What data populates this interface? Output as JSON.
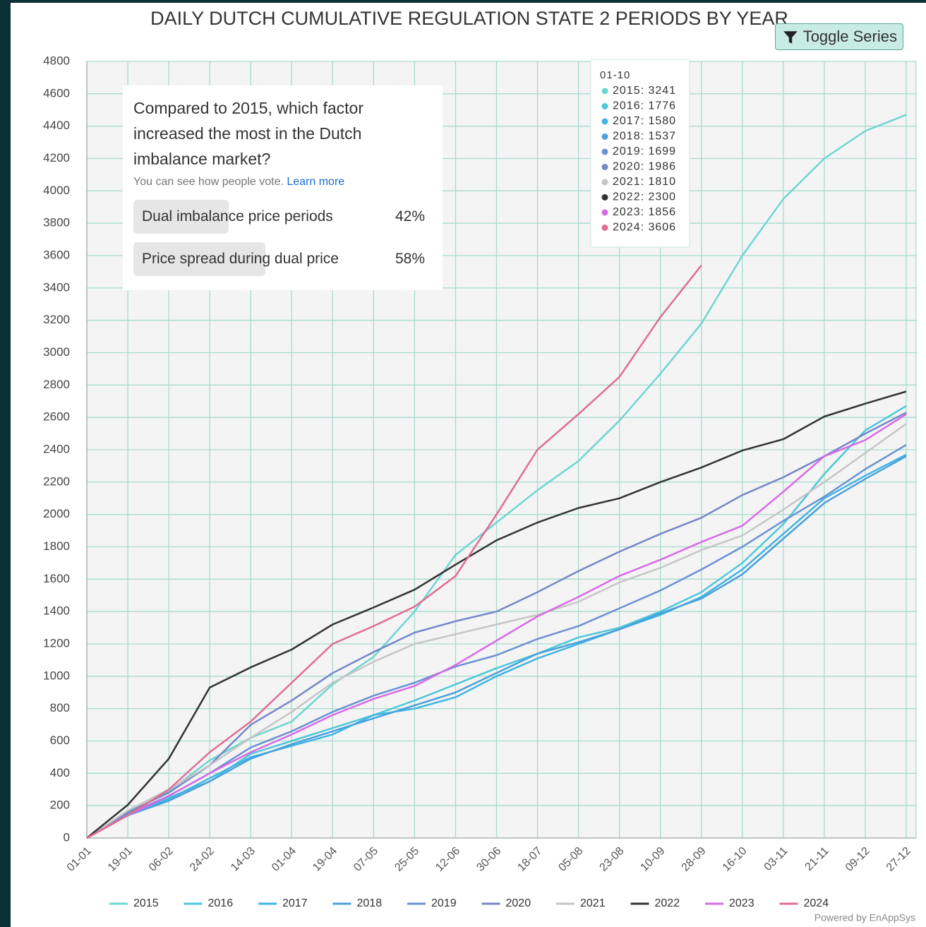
{
  "chart_data": {
    "type": "line",
    "title": "DAILY DUTCH CUMULATIVE REGULATION STATE 2 PERIODS BY YEAR",
    "categories": [
      "01-01",
      "19-01",
      "06-02",
      "24-02",
      "14-03",
      "01-04",
      "19-04",
      "07-05",
      "25-05",
      "12-06",
      "30-06",
      "18-07",
      "05-08",
      "23-08",
      "10-09",
      "28-09",
      "16-10",
      "03-11",
      "21-11",
      "09-12",
      "27-12"
    ],
    "ylim": [
      0,
      4800
    ],
    "yticks": [
      0,
      200,
      400,
      600,
      800,
      1000,
      1200,
      1400,
      1600,
      1800,
      2000,
      2200,
      2400,
      2600,
      2800,
      3000,
      3200,
      3400,
      3600,
      3800,
      4000,
      4200,
      4400,
      4600,
      4800
    ],
    "grid": true,
    "legend": "bottom",
    "series": [
      {
        "name": "2015",
        "color": "#6fd6cf",
        "values": [
          0,
          150,
          290,
          480,
          620,
          720,
          950,
          1120,
          1400,
          1750,
          1950,
          2150,
          2330,
          2580,
          2870,
          3180,
          3600,
          3950,
          4200,
          4370,
          4470
        ]
      },
      {
        "name": "2016",
        "color": "#4ec8d8",
        "values": [
          0,
          150,
          250,
          350,
          520,
          600,
          680,
          760,
          850,
          950,
          1050,
          1140,
          1240,
          1300,
          1400,
          1520,
          1700,
          1940,
          2250,
          2520,
          2670
        ]
      },
      {
        "name": "2017",
        "color": "#3fb4e4",
        "values": [
          0,
          150,
          240,
          370,
          500,
          570,
          640,
          760,
          800,
          870,
          1000,
          1110,
          1200,
          1290,
          1380,
          1490,
          1660,
          1880,
          2100,
          2240,
          2370
        ]
      },
      {
        "name": "2018",
        "color": "#4ba0dc",
        "values": [
          0,
          140,
          230,
          350,
          490,
          580,
          660,
          740,
          820,
          900,
          1020,
          1140,
          1210,
          1290,
          1390,
          1480,
          1630,
          1850,
          2070,
          2220,
          2360
        ]
      },
      {
        "name": "2019",
        "color": "#6b91d2",
        "values": [
          0,
          150,
          260,
          400,
          560,
          660,
          780,
          880,
          960,
          1060,
          1130,
          1230,
          1310,
          1420,
          1530,
          1660,
          1800,
          1960,
          2110,
          2280,
          2430
        ]
      },
      {
        "name": "2020",
        "color": "#7487c9",
        "values": [
          0,
          160,
          280,
          450,
          700,
          850,
          1020,
          1150,
          1270,
          1340,
          1400,
          1520,
          1650,
          1770,
          1880,
          1980,
          2120,
          2230,
          2360,
          2500,
          2630
        ]
      },
      {
        "name": "2021",
        "color": "#c6c6c6",
        "values": [
          0,
          170,
          300,
          450,
          620,
          780,
          960,
          1090,
          1200,
          1260,
          1320,
          1380,
          1460,
          1580,
          1670,
          1780,
          1870,
          2030,
          2200,
          2380,
          2560
        ]
      },
      {
        "name": "2022",
        "color": "#333333",
        "values": [
          0,
          205,
          490,
          930,
          1055,
          1165,
          1320,
          1425,
          1535,
          1690,
          1840,
          1950,
          2040,
          2100,
          2200,
          2290,
          2395,
          2465,
          2605,
          2685,
          2760
        ]
      },
      {
        "name": "2023",
        "color": "#d86ae6",
        "values": [
          0,
          140,
          260,
          400,
          530,
          640,
          760,
          860,
          940,
          1070,
          1220,
          1370,
          1490,
          1620,
          1720,
          1830,
          1930,
          2140,
          2360,
          2460,
          2620
        ]
      },
      {
        "name": "2024",
        "color": "#e06d93",
        "values": [
          0,
          140,
          300,
          530,
          720,
          960,
          1200,
          1310,
          1430,
          1620,
          2000,
          2400,
          2620,
          2850,
          3220,
          3540,
          null,
          null,
          null,
          null,
          null
        ]
      }
    ],
    "tooltip": {
      "title": "01-10",
      "items": [
        "2015: 3241",
        "2016: 1776",
        "2017: 1580",
        "2018: 1537",
        "2019: 1699",
        "2020: 1986",
        "2021: 1810",
        "2022: 2300",
        "2023: 1856",
        "2024: 3606"
      ]
    }
  },
  "poll": {
    "question": "Compared to 2015, which factor increased the most in the Dutch imbalance market?",
    "note": "You can see how people vote.",
    "link": "Learn more",
    "options": [
      {
        "text": "Dual imbalance price periods",
        "percent": 42,
        "percent_label": "42%"
      },
      {
        "text": "Price spread during dual price",
        "percent": 58,
        "percent_label": "58%"
      }
    ]
  },
  "toggle_button": "Toggle Series",
  "credit": "Powered by EnAppSys"
}
